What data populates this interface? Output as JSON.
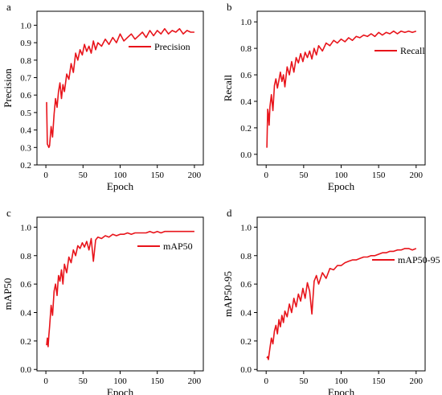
{
  "chart_data": [
    {
      "type": "line",
      "panel_label": "a",
      "xlabel": "Epoch",
      "ylabel": "Precision",
      "xlim": [
        -12,
        212
      ],
      "ylim": [
        0.2,
        1.08
      ],
      "xticks": [
        0,
        50,
        100,
        150,
        200
      ],
      "xtick_labels": [
        "0",
        "50",
        "100",
        "150",
        "200"
      ],
      "yticks": [
        0.2,
        0.3,
        0.4,
        0.5,
        0.6,
        0.7,
        0.8,
        0.9,
        1.0
      ],
      "ytick_labels": [
        "0.2",
        "0.3",
        "0.4",
        "0.5",
        "0.6",
        "0.7",
        "0.8",
        "0.9",
        "1.0"
      ],
      "legend_position": "top-right",
      "grid": false,
      "series": [
        {
          "name": "Precision",
          "color": "#e8141b",
          "x": [
            1,
            2,
            3,
            4,
            5,
            7,
            9,
            11,
            13,
            15,
            17,
            19,
            21,
            23,
            25,
            28,
            31,
            34,
            37,
            40,
            43,
            46,
            49,
            52,
            55,
            58,
            61,
            64,
            67,
            70,
            75,
            80,
            85,
            90,
            95,
            100,
            105,
            110,
            115,
            120,
            125,
            130,
            135,
            140,
            145,
            150,
            155,
            160,
            165,
            170,
            175,
            180,
            185,
            190,
            195,
            200
          ],
          "y": [
            0.56,
            0.32,
            0.31,
            0.3,
            0.31,
            0.42,
            0.36,
            0.49,
            0.58,
            0.53,
            0.62,
            0.67,
            0.58,
            0.66,
            0.62,
            0.72,
            0.69,
            0.78,
            0.73,
            0.84,
            0.8,
            0.86,
            0.83,
            0.89,
            0.85,
            0.88,
            0.84,
            0.91,
            0.86,
            0.9,
            0.88,
            0.92,
            0.89,
            0.93,
            0.9,
            0.95,
            0.91,
            0.93,
            0.95,
            0.92,
            0.94,
            0.96,
            0.93,
            0.97,
            0.94,
            0.97,
            0.95,
            0.98,
            0.95,
            0.97,
            0.96,
            0.98,
            0.95,
            0.97,
            0.96,
            0.96
          ]
        }
      ]
    },
    {
      "type": "line",
      "panel_label": "b",
      "xlabel": "Epoch",
      "ylabel": "Recall",
      "xlim": [
        -12,
        212
      ],
      "ylim": [
        -0.08,
        1.08
      ],
      "xticks": [
        0,
        50,
        100,
        150,
        200
      ],
      "xtick_labels": [
        "0",
        "50",
        "100",
        "150",
        "200"
      ],
      "yticks": [
        0.0,
        0.2,
        0.4,
        0.6,
        0.8,
        1.0
      ],
      "ytick_labels": [
        "0.0",
        "0.2",
        "0.4",
        "0.6",
        "0.8",
        "1.0"
      ],
      "legend_position": "top-right",
      "grid": false,
      "series": [
        {
          "name": "Recall",
          "color": "#e8141b",
          "x": [
            1,
            2,
            3,
            4,
            5,
            7,
            9,
            11,
            13,
            15,
            17,
            19,
            21,
            23,
            25,
            28,
            31,
            34,
            37,
            40,
            43,
            46,
            49,
            52,
            55,
            58,
            61,
            64,
            67,
            70,
            75,
            80,
            85,
            90,
            95,
            100,
            105,
            110,
            115,
            120,
            125,
            130,
            135,
            140,
            145,
            150,
            155,
            160,
            165,
            170,
            175,
            180,
            185,
            190,
            195,
            200
          ],
          "y": [
            0.05,
            0.34,
            0.3,
            0.22,
            0.36,
            0.45,
            0.33,
            0.52,
            0.57,
            0.5,
            0.56,
            0.62,
            0.55,
            0.6,
            0.51,
            0.66,
            0.6,
            0.7,
            0.62,
            0.73,
            0.69,
            0.76,
            0.7,
            0.77,
            0.73,
            0.78,
            0.72,
            0.8,
            0.75,
            0.82,
            0.78,
            0.84,
            0.82,
            0.86,
            0.84,
            0.87,
            0.85,
            0.88,
            0.86,
            0.89,
            0.88,
            0.9,
            0.89,
            0.91,
            0.89,
            0.92,
            0.9,
            0.92,
            0.91,
            0.93,
            0.91,
            0.93,
            0.92,
            0.93,
            0.92,
            0.93
          ]
        }
      ]
    },
    {
      "type": "line",
      "panel_label": "c",
      "xlabel": "Epoch",
      "ylabel": "mAP50",
      "xlim": [
        -12,
        212
      ],
      "ylim": [
        -0.01,
        1.07
      ],
      "xticks": [
        0,
        50,
        100,
        150,
        200
      ],
      "xtick_labels": [
        "0",
        "50",
        "100",
        "150",
        "200"
      ],
      "yticks": [
        0.0,
        0.2,
        0.4,
        0.6,
        0.8,
        1.0
      ],
      "ytick_labels": [
        "0.0",
        "0.2",
        "0.4",
        "0.6",
        "0.8",
        "1.0"
      ],
      "legend_position": "top-right",
      "grid": false,
      "series": [
        {
          "name": "mAP50",
          "color": "#e8141b",
          "x": [
            1,
            2,
            3,
            4,
            5,
            7,
            9,
            11,
            13,
            15,
            17,
            19,
            21,
            23,
            25,
            28,
            31,
            34,
            37,
            40,
            43,
            46,
            49,
            52,
            55,
            58,
            61,
            64,
            67,
            70,
            75,
            80,
            85,
            90,
            95,
            100,
            105,
            110,
            115,
            120,
            125,
            130,
            135,
            140,
            145,
            150,
            155,
            160,
            165,
            170,
            175,
            180,
            185,
            190,
            195,
            200
          ],
          "y": [
            0.17,
            0.22,
            0.16,
            0.24,
            0.3,
            0.45,
            0.38,
            0.55,
            0.6,
            0.52,
            0.66,
            0.62,
            0.7,
            0.6,
            0.74,
            0.68,
            0.79,
            0.75,
            0.84,
            0.8,
            0.87,
            0.85,
            0.89,
            0.86,
            0.9,
            0.84,
            0.92,
            0.76,
            0.91,
            0.93,
            0.92,
            0.94,
            0.93,
            0.95,
            0.94,
            0.95,
            0.95,
            0.96,
            0.95,
            0.96,
            0.96,
            0.96,
            0.96,
            0.97,
            0.96,
            0.97,
            0.96,
            0.97,
            0.97,
            0.97,
            0.97,
            0.97,
            0.97,
            0.97,
            0.97,
            0.97
          ]
        }
      ]
    },
    {
      "type": "line",
      "panel_label": "d",
      "xlabel": "Epoch",
      "ylabel": "mAP50-95",
      "xlim": [
        -12,
        212
      ],
      "ylim": [
        -0.01,
        1.07
      ],
      "xticks": [
        0,
        50,
        100,
        150,
        200
      ],
      "xtick_labels": [
        "0",
        "50",
        "100",
        "150",
        "200"
      ],
      "yticks": [
        0.0,
        0.2,
        0.4,
        0.6,
        0.8,
        1.0
      ],
      "ytick_labels": [
        "0.0",
        "0.2",
        "0.4",
        "0.6",
        "0.8",
        "1.0"
      ],
      "legend_position": "center-right",
      "grid": false,
      "series": [
        {
          "name": "mAP50-95",
          "color": "#e8141b",
          "x": [
            1,
            2,
            3,
            4,
            5,
            7,
            9,
            11,
            13,
            15,
            17,
            19,
            21,
            23,
            25,
            28,
            31,
            34,
            37,
            40,
            43,
            46,
            49,
            52,
            55,
            58,
            61,
            64,
            67,
            70,
            75,
            80,
            85,
            90,
            95,
            100,
            105,
            110,
            115,
            120,
            125,
            130,
            135,
            140,
            145,
            150,
            155,
            160,
            165,
            170,
            175,
            180,
            185,
            190,
            195,
            200
          ],
          "y": [
            0.08,
            0.09,
            0.07,
            0.11,
            0.15,
            0.22,
            0.18,
            0.27,
            0.31,
            0.25,
            0.35,
            0.3,
            0.38,
            0.33,
            0.41,
            0.37,
            0.46,
            0.4,
            0.5,
            0.44,
            0.53,
            0.48,
            0.57,
            0.5,
            0.61,
            0.55,
            0.39,
            0.62,
            0.66,
            0.6,
            0.68,
            0.64,
            0.71,
            0.7,
            0.73,
            0.73,
            0.75,
            0.76,
            0.77,
            0.77,
            0.78,
            0.79,
            0.79,
            0.8,
            0.8,
            0.81,
            0.82,
            0.82,
            0.83,
            0.83,
            0.84,
            0.84,
            0.85,
            0.85,
            0.84,
            0.85
          ]
        }
      ]
    }
  ]
}
